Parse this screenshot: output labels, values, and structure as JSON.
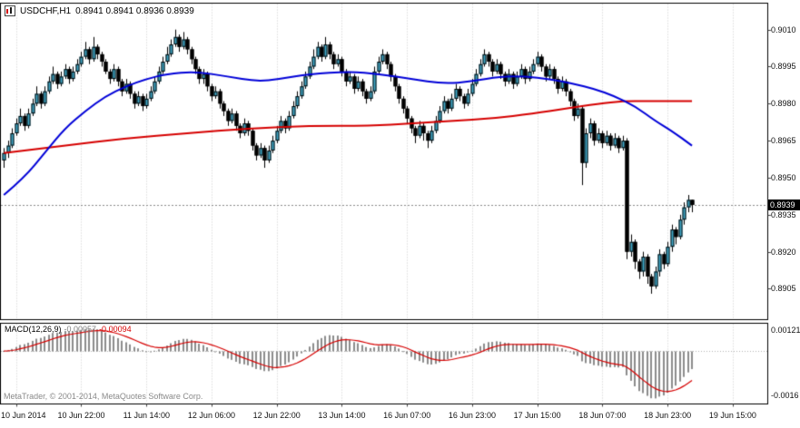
{
  "header": {
    "symbol_period": "USDCHF,H1",
    "ohlc_text": "0.8941 0.8941 0.8936 0.8939"
  },
  "price_axis": {
    "labels": [
      "0.9010",
      "0.8995",
      "0.8980",
      "0.8965",
      "0.8950",
      "0.8935",
      "0.8920",
      "0.8905"
    ],
    "current_price": "0.8939"
  },
  "macd_axis": {
    "max_label": "0.00121",
    "min_label": "-0.0016"
  },
  "time_axis": {
    "labels": [
      "10 Jun 2014",
      "10 Jun 22:00",
      "11 Jun 14:00",
      "12 Jun 06:00",
      "12 Jun 22:00",
      "13 Jun 14:00",
      "16 Jun 07:00",
      "16 Jun 23:00",
      "17 Jun 15:00",
      "18 Jun 07:00",
      "18 Jun 23:00",
      "19 Jun 15:00"
    ]
  },
  "indicator": {
    "name": "MACD(12,26,9)",
    "value_main": "-0.00057",
    "value_signal": "-0.00094"
  },
  "footer": {
    "copyright": "MetaTrader, © 2001-2014, MetaQuotes Software Corp."
  },
  "colors": {
    "bull": "#3fa9c9",
    "bear": "#000000",
    "wick": "#000000",
    "ma_fast": "#0000d8",
    "ma_slow": "#d60000",
    "histogram": "#8b8b8b",
    "signal": "#d60000",
    "grid": "#cdcdcd",
    "price_line": "#8a8a8a",
    "price_tag_bg": "#000000",
    "price_tag_text": "#ffffff"
  },
  "chart_data": {
    "type": "candlestick",
    "symbol": "USDCHF",
    "timeframe": "H1",
    "title": "USDCHF,H1 0.8941 0.8941 0.8936 0.8939",
    "price_format": "candles are [open,high,low,close] in pips: price = 0.8900 + pips*0.0001",
    "candles": [
      [
        57,
        62,
        54,
        60
      ],
      [
        60,
        65,
        58,
        63
      ],
      [
        63,
        70,
        62,
        68
      ],
      [
        68,
        74,
        67,
        72
      ],
      [
        72,
        78,
        71,
        75
      ],
      [
        75,
        76,
        69,
        71
      ],
      [
        71,
        78,
        70,
        76
      ],
      [
        76,
        82,
        75,
        80
      ],
      [
        80,
        87,
        79,
        84
      ],
      [
        84,
        85,
        78,
        80
      ],
      [
        80,
        87,
        79,
        85
      ],
      [
        85,
        91,
        84,
        89
      ],
      [
        89,
        95,
        88,
        92
      ],
      [
        92,
        93,
        86,
        88
      ],
      [
        88,
        93,
        87,
        91
      ],
      [
        91,
        96,
        90,
        94
      ],
      [
        94,
        95,
        88,
        90
      ],
      [
        90,
        95,
        89,
        93
      ],
      [
        93,
        98,
        92,
        96
      ],
      [
        96,
        101,
        95,
        99
      ],
      [
        99,
        105,
        98,
        102
      ],
      [
        102,
        103,
        96,
        98
      ],
      [
        98,
        107,
        97,
        103
      ],
      [
        103,
        104,
        98,
        100
      ],
      [
        100,
        101,
        95,
        97
      ],
      [
        97,
        98,
        92,
        93
      ],
      [
        93,
        94,
        88,
        90
      ],
      [
        90,
        96,
        89,
        94
      ],
      [
        94,
        95,
        87,
        89
      ],
      [
        89,
        90,
        83,
        85
      ],
      [
        85,
        90,
        84,
        88
      ],
      [
        88,
        89,
        82,
        84
      ],
      [
        84,
        85,
        78,
        80
      ],
      [
        80,
        85,
        79,
        83
      ],
      [
        83,
        84,
        77,
        79
      ],
      [
        79,
        84,
        78,
        82
      ],
      [
        82,
        87,
        81,
        85
      ],
      [
        85,
        91,
        84,
        89
      ],
      [
        89,
        95,
        88,
        93
      ],
      [
        93,
        99,
        92,
        97
      ],
      [
        97,
        103,
        96,
        100
      ],
      [
        100,
        106,
        99,
        104
      ],
      [
        104,
        110,
        103,
        107
      ],
      [
        107,
        108,
        101,
        103
      ],
      [
        103,
        109,
        102,
        106
      ],
      [
        106,
        107,
        100,
        102
      ],
      [
        102,
        103,
        96,
        98
      ],
      [
        98,
        99,
        92,
        94
      ],
      [
        94,
        95,
        88,
        90
      ],
      [
        90,
        94,
        88,
        92
      ],
      [
        92,
        93,
        85,
        87
      ],
      [
        87,
        88,
        81,
        83
      ],
      [
        83,
        87,
        82,
        85
      ],
      [
        85,
        86,
        78,
        80
      ],
      [
        80,
        81,
        75,
        77
      ],
      [
        77,
        78,
        71,
        73
      ],
      [
        73,
        78,
        72,
        76
      ],
      [
        76,
        77,
        69,
        71
      ],
      [
        71,
        72,
        66,
        68
      ],
      [
        68,
        74,
        67,
        72
      ],
      [
        72,
        73,
        67,
        69
      ],
      [
        69,
        70,
        61,
        63
      ],
      [
        63,
        64,
        57,
        59
      ],
      [
        59,
        64,
        58,
        62
      ],
      [
        62,
        63,
        54,
        57
      ],
      [
        57,
        63,
        56,
        61
      ],
      [
        61,
        67,
        60,
        65
      ],
      [
        65,
        71,
        64,
        69
      ],
      [
        69,
        75,
        68,
        73
      ],
      [
        73,
        74,
        68,
        70
      ],
      [
        70,
        77,
        69,
        75
      ],
      [
        75,
        81,
        74,
        79
      ],
      [
        79,
        85,
        78,
        83
      ],
      [
        83,
        89,
        82,
        87
      ],
      [
        87,
        93,
        86,
        91
      ],
      [
        91,
        97,
        90,
        95
      ],
      [
        95,
        102,
        94,
        99
      ],
      [
        99,
        105,
        98,
        103
      ],
      [
        103,
        104,
        97,
        99
      ],
      [
        99,
        107,
        98,
        104
      ],
      [
        104,
        105,
        98,
        100
      ],
      [
        100,
        101,
        94,
        96
      ],
      [
        96,
        100,
        95,
        98
      ],
      [
        98,
        99,
        91,
        93
      ],
      [
        93,
        94,
        87,
        89
      ],
      [
        89,
        93,
        88,
        91
      ],
      [
        91,
        92,
        84,
        86
      ],
      [
        86,
        91,
        85,
        89
      ],
      [
        89,
        90,
        83,
        85
      ],
      [
        85,
        86,
        80,
        82
      ],
      [
        82,
        87,
        81,
        85
      ],
      [
        85,
        95,
        84,
        93
      ],
      [
        93,
        99,
        92,
        97
      ],
      [
        97,
        102,
        96,
        100
      ],
      [
        100,
        101,
        94,
        96
      ],
      [
        96,
        97,
        89,
        91
      ],
      [
        91,
        92,
        85,
        87
      ],
      [
        87,
        88,
        80,
        82
      ],
      [
        82,
        83,
        76,
        78
      ],
      [
        78,
        79,
        72,
        74
      ],
      [
        74,
        75,
        68,
        70
      ],
      [
        70,
        71,
        64,
        67
      ],
      [
        67,
        73,
        66,
        71
      ],
      [
        71,
        72,
        65,
        68
      ],
      [
        68,
        69,
        62,
        65
      ],
      [
        65,
        71,
        64,
        69
      ],
      [
        69,
        75,
        68,
        73
      ],
      [
        73,
        79,
        72,
        77
      ],
      [
        77,
        83,
        76,
        81
      ],
      [
        81,
        82,
        76,
        78
      ],
      [
        78,
        84,
        77,
        82
      ],
      [
        82,
        88,
        81,
        86
      ],
      [
        86,
        87,
        81,
        83
      ],
      [
        83,
        84,
        78,
        80
      ],
      [
        80,
        86,
        79,
        84
      ],
      [
        84,
        90,
        83,
        88
      ],
      [
        88,
        94,
        87,
        92
      ],
      [
        92,
        98,
        91,
        96
      ],
      [
        96,
        102,
        95,
        100
      ],
      [
        100,
        101,
        95,
        97
      ],
      [
        97,
        98,
        91,
        93
      ],
      [
        93,
        98,
        92,
        96
      ],
      [
        96,
        97,
        90,
        92
      ],
      [
        92,
        93,
        87,
        89
      ],
      [
        89,
        94,
        88,
        92
      ],
      [
        92,
        93,
        86,
        88
      ],
      [
        88,
        93,
        87,
        91
      ],
      [
        91,
        96,
        90,
        94
      ],
      [
        94,
        95,
        88,
        90
      ],
      [
        90,
        95,
        89,
        93
      ],
      [
        93,
        98,
        92,
        96
      ],
      [
        96,
        101,
        95,
        99
      ],
      [
        99,
        100,
        93,
        95
      ],
      [
        95,
        96,
        89,
        91
      ],
      [
        91,
        96,
        90,
        94
      ],
      [
        94,
        95,
        88,
        90
      ],
      [
        90,
        91,
        84,
        86
      ],
      [
        86,
        91,
        85,
        89
      ],
      [
        89,
        90,
        83,
        85
      ],
      [
        85,
        86,
        79,
        81
      ],
      [
        81,
        82,
        73,
        75
      ],
      [
        75,
        80,
        74,
        78
      ],
      [
        78,
        79,
        47,
        56
      ],
      [
        56,
        70,
        54,
        68
      ],
      [
        68,
        74,
        66,
        72
      ],
      [
        72,
        73,
        63,
        65
      ],
      [
        65,
        70,
        64,
        68
      ],
      [
        68,
        69,
        62,
        64
      ],
      [
        64,
        69,
        63,
        67
      ],
      [
        67,
        68,
        61,
        63
      ],
      [
        63,
        68,
        62,
        66
      ],
      [
        66,
        67,
        60,
        62
      ],
      [
        62,
        67,
        61,
        65
      ],
      [
        65,
        66,
        17,
        20
      ],
      [
        20,
        27,
        18,
        24
      ],
      [
        24,
        25,
        13,
        16
      ],
      [
        16,
        17,
        9,
        12
      ],
      [
        12,
        20,
        10,
        18
      ],
      [
        18,
        19,
        7,
        10
      ],
      [
        10,
        11,
        3,
        6
      ],
      [
        6,
        14,
        5,
        12
      ],
      [
        12,
        21,
        10,
        19
      ],
      [
        19,
        20,
        13,
        15
      ],
      [
        15,
        24,
        14,
        22
      ],
      [
        22,
        31,
        20,
        29
      ],
      [
        29,
        30,
        23,
        26
      ],
      [
        26,
        35,
        25,
        33
      ],
      [
        33,
        40,
        31,
        38
      ],
      [
        38,
        43,
        36,
        41
      ],
      [
        41,
        41,
        36,
        39
      ]
    ],
    "last_bar": {
      "open": 0.8941,
      "high": 0.8941,
      "low": 0.8936,
      "close": 0.8939
    },
    "current_price": 0.8939,
    "right_shift_bars": 18,
    "x_tick_slots": [
      3,
      19,
      35,
      51,
      67,
      83,
      99,
      115,
      131,
      147,
      163,
      179
    ],
    "y_axis": {
      "min": 0.88925,
      "max": 0.90207,
      "gridline_values": [
        0.901,
        0.8995,
        0.898,
        0.8965,
        0.895,
        0.8935,
        0.892,
        0.8905
      ]
    },
    "moving_averages": [
      {
        "name": "fast-ma-blue",
        "anchors": [
          [
            0,
            43
          ],
          [
            5,
            50
          ],
          [
            10,
            60
          ],
          [
            15,
            70
          ],
          [
            20,
            77
          ],
          [
            25,
            83
          ],
          [
            30,
            87
          ],
          [
            35,
            90
          ],
          [
            40,
            92
          ],
          [
            47,
            93
          ],
          [
            55,
            91
          ],
          [
            62,
            89
          ],
          [
            68,
            90
          ],
          [
            75,
            92
          ],
          [
            85,
            93
          ],
          [
            92,
            92
          ],
          [
            100,
            90
          ],
          [
            108,
            88
          ],
          [
            115,
            89
          ],
          [
            122,
            91
          ],
          [
            128,
            91
          ],
          [
            134,
            90
          ],
          [
            140,
            88
          ],
          [
            145,
            86
          ],
          [
            150,
            83
          ],
          [
            155,
            79
          ],
          [
            160,
            73
          ],
          [
            164,
            69
          ],
          [
            169,
            63
          ]
        ]
      },
      {
        "name": "slow-ma-red",
        "anchors": [
          [
            0,
            60
          ],
          [
            15,
            63
          ],
          [
            30,
            66
          ],
          [
            45,
            68
          ],
          [
            60,
            70
          ],
          [
            75,
            71
          ],
          [
            90,
            71
          ],
          [
            100,
            72
          ],
          [
            110,
            73
          ],
          [
            120,
            74
          ],
          [
            130,
            76
          ],
          [
            138,
            78
          ],
          [
            146,
            80
          ],
          [
            152,
            81
          ],
          [
            158,
            81
          ],
          [
            163,
            81
          ],
          [
            169,
            81
          ]
        ]
      }
    ],
    "macd": {
      "fast": 12,
      "slow": 26,
      "signal_period": 9,
      "current_value": -0.00057,
      "current_signal": -0.00094,
      "axis_max": 0.00121,
      "axis_min": -0.0016
    }
  }
}
